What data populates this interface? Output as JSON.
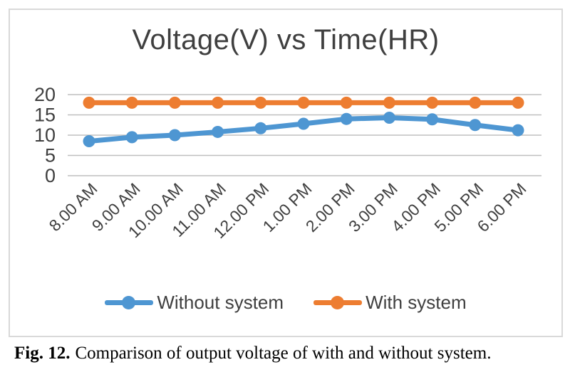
{
  "figure": {
    "caption_label": "Fig. 12.",
    "caption_text": "Comparison of output voltage of with and without system."
  },
  "chart_data": {
    "type": "line",
    "title": "Voltage(V) vs Time(HR)",
    "xlabel": "",
    "ylabel": "",
    "categories": [
      "8.00 AM",
      "9.00 AM",
      "10.00 AM",
      "11.00 AM",
      "12.00 PM",
      "1.00 PM",
      "2.00 PM",
      "3.00 PM",
      "4.00 PM",
      "5.00 PM",
      "6.00 PM"
    ],
    "series": [
      {
        "name": "Without system",
        "color": "#4E96D2",
        "values": [
          8.5,
          9.5,
          10,
          10.8,
          11.7,
          12.8,
          14,
          14.3,
          13.9,
          12.5,
          11.2
        ]
      },
      {
        "name": "With system",
        "color": "#ED7D31",
        "values": [
          18,
          18,
          18,
          18,
          18,
          18,
          18,
          18,
          18,
          18,
          18
        ]
      }
    ],
    "ylim": [
      0,
      20
    ],
    "yticks": [
      0,
      5,
      10,
      15,
      20
    ],
    "grid": "horizontal",
    "legend_position": "bottom",
    "text_color": "#3F3F3F",
    "gridline_color": "#BFBFBF",
    "frame_border_color": "#D9D9D9"
  }
}
